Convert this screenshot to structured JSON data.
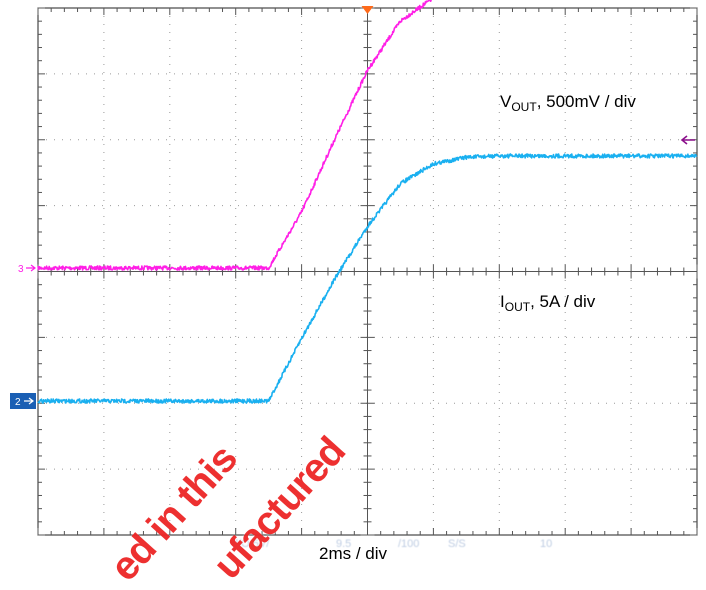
{
  "chart_data": {
    "type": "line",
    "title": "",
    "xlabel": "2ms / div",
    "x_unit": "ms",
    "x_per_div": 2,
    "xlim": [
      0,
      20
    ],
    "grid": true,
    "series": [
      {
        "name": "VOUT",
        "label_main": "V",
        "label_sub": "OUT",
        "label_rest": ", 500mV / div",
        "channel": "3",
        "color": "#ff1fe6",
        "y_unit": "div",
        "x": [
          0,
          7.0,
          8.0,
          9.0,
          10.0,
          11.0,
          12.0,
          12.8,
          14.0,
          20.0
        ],
        "y": [
          0,
          0,
          0.85,
          1.95,
          3.0,
          3.75,
          4.1,
          4.2,
          4.22,
          4.22
        ]
      },
      {
        "name": "IOUT",
        "label_main": "I",
        "label_sub": "OUT",
        "label_rest": ", 5A / div",
        "channel": "2",
        "color": "#1ab0f0",
        "y_unit": "div",
        "x": [
          0,
          7.0,
          8.0,
          9.0,
          10.0,
          11.0,
          12.0,
          13.0,
          14.0,
          20.0
        ],
        "y": [
          0,
          0,
          0.95,
          1.85,
          2.65,
          3.3,
          3.6,
          3.7,
          3.72,
          3.72
        ]
      }
    ]
  },
  "markers": {
    "trigger_color": "#ff6a1a",
    "arrow_right_color": "#8b0f8b"
  },
  "watermark": {
    "line1": "ed in this",
    "line2": "ufactured",
    "faded": [
      "d/O  5V/",
      "9.5",
      "/100",
      "S/S",
      "10"
    ]
  }
}
